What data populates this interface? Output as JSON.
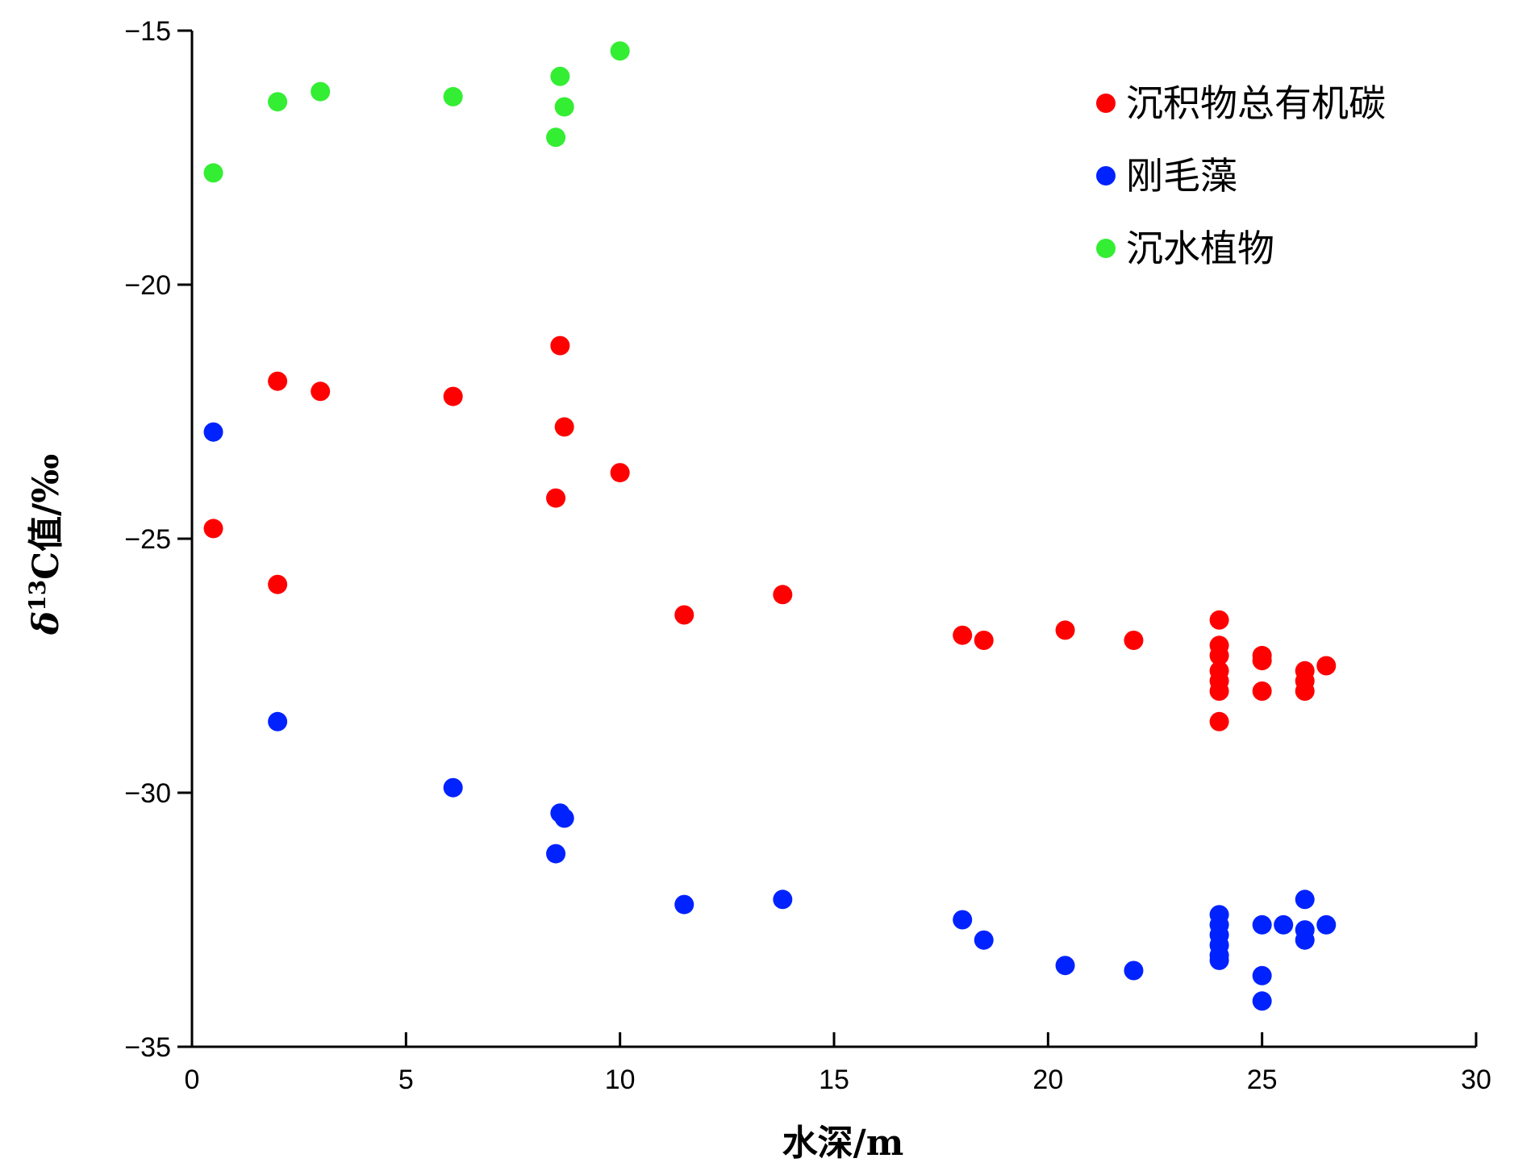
{
  "chart_data": {
    "type": "scatter",
    "xlabel": "水深/m",
    "ylabel": "δ13C值/‰",
    "ylabel_parts": {
      "symbol": "δ",
      "sup": "13",
      "rest": "C值/‰"
    },
    "xlim": [
      0,
      30
    ],
    "ylim": [
      -35,
      -15
    ],
    "xticks": [
      0,
      5,
      10,
      15,
      20,
      25,
      30
    ],
    "yticks": [
      -15,
      -20,
      -25,
      -30,
      -35
    ],
    "ytick_labels": [
      "−15",
      "−20",
      "−25",
      "−30",
      "−35"
    ],
    "grid": false,
    "legend_position": "top-right",
    "series": [
      {
        "name": "沉积物总有机碳",
        "color": "#ff0000",
        "points": [
          [
            0.5,
            -24.8
          ],
          [
            2,
            -21.9
          ],
          [
            2,
            -25.9
          ],
          [
            3,
            -22.1
          ],
          [
            6.1,
            -22.2
          ],
          [
            8.6,
            -21.2
          ],
          [
            8.7,
            -22.8
          ],
          [
            8.5,
            -24.2
          ],
          [
            10,
            -23.7
          ],
          [
            11.5,
            -26.5
          ],
          [
            13.8,
            -26.1
          ],
          [
            18,
            -26.9
          ],
          [
            18.5,
            -27
          ],
          [
            20.4,
            -26.8
          ],
          [
            22,
            -27
          ],
          [
            24,
            -26.6
          ],
          [
            24,
            -27.1
          ],
          [
            24,
            -27.3
          ],
          [
            24,
            -27.6
          ],
          [
            24,
            -27.8
          ],
          [
            24,
            -28
          ],
          [
            24,
            -28.6
          ],
          [
            25,
            -27.3
          ],
          [
            25,
            -27.4
          ],
          [
            25,
            -28
          ],
          [
            26,
            -27.6
          ],
          [
            26,
            -27.8
          ],
          [
            26,
            -28
          ],
          [
            26.5,
            -27.5
          ]
        ]
      },
      {
        "name": "刚毛藻",
        "color": "#0022ff",
        "points": [
          [
            0.5,
            -22.9
          ],
          [
            2,
            -28.6
          ],
          [
            6.1,
            -29.9
          ],
          [
            8.6,
            -30.4
          ],
          [
            8.7,
            -30.5
          ],
          [
            8.5,
            -31.2
          ],
          [
            11.5,
            -32.2
          ],
          [
            13.8,
            -32.1
          ],
          [
            18,
            -32.5
          ],
          [
            18.5,
            -32.9
          ],
          [
            20.4,
            -33.4
          ],
          [
            22,
            -33.5
          ],
          [
            24,
            -32.4
          ],
          [
            24,
            -32.6
          ],
          [
            24,
            -32.8
          ],
          [
            24,
            -33
          ],
          [
            24,
            -33.2
          ],
          [
            24,
            -33.3
          ],
          [
            25,
            -32.6
          ],
          [
            25,
            -33.6
          ],
          [
            25,
            -34.1
          ],
          [
            25.5,
            -32.6
          ],
          [
            26,
            -32.1
          ],
          [
            26,
            -32.7
          ],
          [
            26,
            -32.9
          ],
          [
            26.5,
            -32.6
          ]
        ]
      },
      {
        "name": "沉水植物",
        "color": "#33ee33",
        "points": [
          [
            0.5,
            -17.8
          ],
          [
            2,
            -16.4
          ],
          [
            3,
            -16.2
          ],
          [
            6.1,
            -16.3
          ],
          [
            8.6,
            -15.9
          ],
          [
            8.7,
            -16.5
          ],
          [
            8.5,
            -17.1
          ],
          [
            10,
            -15.4
          ]
        ]
      }
    ]
  }
}
